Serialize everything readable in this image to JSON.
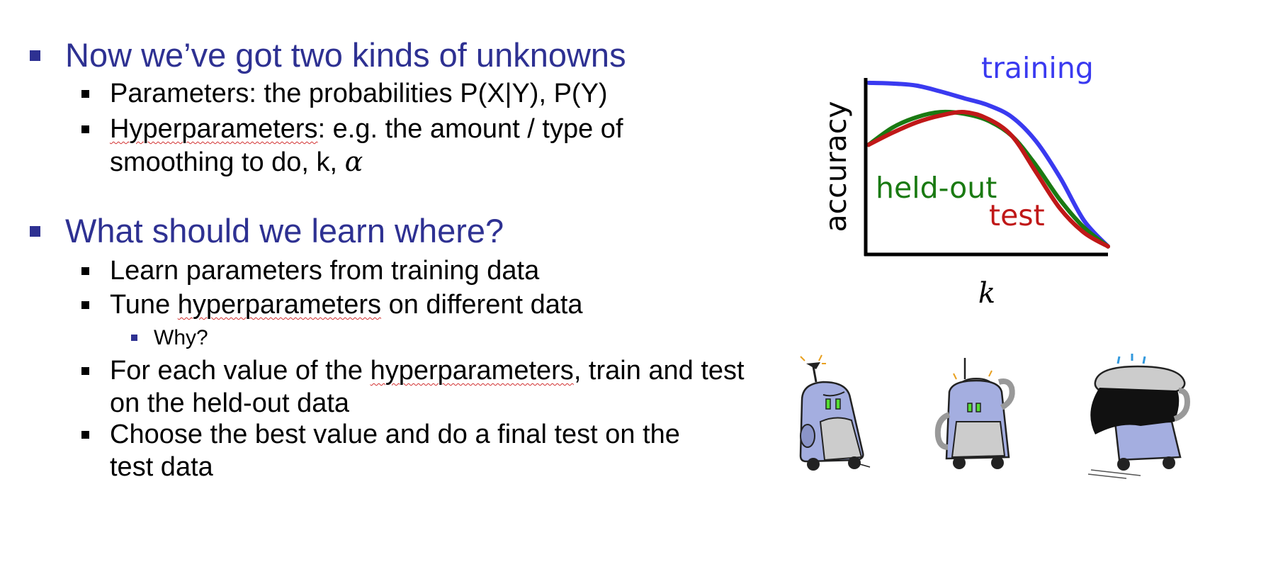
{
  "bullets": {
    "b1": "Now we’ve got two kinds of unknowns",
    "b1_1": "Parameters: the probabilities P(X|Y), P(Y)",
    "b1_2_word": "Hyperparameters",
    "b1_2_rest": ": e.g. the amount / type of smoothing to do, k, ",
    "b1_2_alpha": "α",
    "b2": "What should we learn where?",
    "b2_1": "Learn parameters from training data",
    "b2_2_pre": "Tune ",
    "b2_2_word": "hyperparameters",
    "b2_2_post": " on different data",
    "b2_2_1": "Why?",
    "b2_3_pre": "For each value of the ",
    "b2_3_word": "hyperparameters",
    "b2_3_post": ", train and test on the held-out data",
    "b2_4": "Choose the best value and do a final test on the test data"
  },
  "chart_data": {
    "type": "line",
    "xlabel": "k",
    "ylabel": "accuracy",
    "xlim": [
      0,
      100
    ],
    "ylim": [
      0,
      100
    ],
    "grid": false,
    "series": [
      {
        "name": "training",
        "color": "#3a3af0",
        "x": [
          0,
          10,
          20,
          30,
          40,
          50,
          60,
          70,
          80,
          90,
          100
        ],
        "y": [
          98,
          97.6,
          96.4,
          93,
          89,
          85,
          78,
          64,
          43,
          18,
          3
        ]
      },
      {
        "name": "held-out",
        "color": "#1a7a12",
        "x": [
          0,
          10,
          20,
          30,
          40,
          50,
          60,
          70,
          80,
          90,
          100
        ],
        "y": [
          62,
          72,
          78,
          81,
          80,
          76,
          67,
          50,
          30,
          14,
          3
        ]
      },
      {
        "name": "test",
        "color": "#c01818",
        "x": [
          0,
          10,
          20,
          30,
          40,
          50,
          60,
          70,
          80,
          90,
          100
        ],
        "y": [
          62,
          69,
          75,
          79,
          81,
          77,
          67,
          46,
          25,
          11,
          3
        ]
      }
    ]
  },
  "illustration": {
    "icon": "robots-icon",
    "body_color": "#a4aee0",
    "dark_color": "#222222",
    "light_color": "#cccccc",
    "eye_color": "#55dd33"
  }
}
